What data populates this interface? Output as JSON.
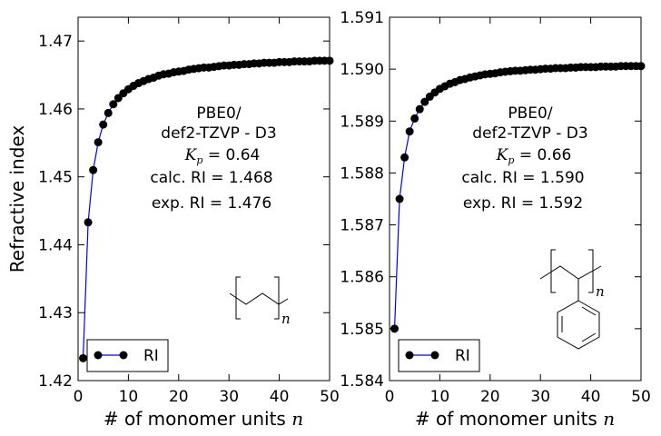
{
  "chart_data": [
    {
      "type": "line",
      "xlabel": "# of monomer units",
      "xlabel_var": "n",
      "ylabel": "Refractive index",
      "xlim": [
        0,
        50
      ],
      "ylim": [
        1.42,
        1.4735
      ],
      "xticks": [
        "0",
        "10",
        "20",
        "30",
        "40",
        "50"
      ],
      "yticks": [
        "1.42",
        "1.43",
        "1.44",
        "1.45",
        "1.46",
        "1.47"
      ],
      "legend": {
        "label": "RI",
        "placement": "lower-left"
      },
      "series": [
        {
          "name": "RI",
          "color": "#0000ff",
          "marker": "circle",
          "x": [
            1,
            2,
            3,
            4,
            5,
            6,
            7,
            8,
            9,
            10,
            11,
            12,
            13,
            14,
            15,
            16,
            17,
            18,
            19,
            20,
            21,
            22,
            23,
            24,
            25,
            26,
            27,
            28,
            29,
            30,
            31,
            32,
            33,
            34,
            35,
            36,
            37,
            38,
            39,
            40,
            41,
            42,
            43,
            44,
            45,
            46,
            47,
            48,
            49,
            50
          ],
          "y": [
            1.4233,
            1.4433,
            1.451,
            1.4551,
            1.4577,
            1.4594,
            1.4607,
            1.4616,
            1.4623,
            1.4629,
            1.4634,
            1.4638,
            1.4641,
            1.4644,
            1.4646,
            1.4649,
            1.4651,
            1.4652,
            1.4654,
            1.4655,
            1.4656,
            1.4658,
            1.4659,
            1.466,
            1.4661,
            1.4661,
            1.4662,
            1.4663,
            1.4664,
            1.4664,
            1.4665,
            1.4665,
            1.4666,
            1.4666,
            1.4667,
            1.4667,
            1.4668,
            1.4668,
            1.4668,
            1.4669,
            1.4669,
            1.4669,
            1.467,
            1.467,
            1.467,
            1.467,
            1.4671,
            1.4671,
            1.4671,
            1.4671
          ]
        }
      ],
      "annotations": {
        "method_line1": "PBE0/",
        "method_line2": "def2-TZVP - D3",
        "kp_symbol": "K",
        "kp_sub": "p",
        "kp_value": " = 0.64",
        "calc": "calc. RI = 1.468",
        "exp": "exp. RI = 1.476"
      },
      "structure": {
        "icon": "polyethylene-repeat-unit-icon",
        "subscript": "n"
      }
    },
    {
      "type": "line",
      "xlabel": "# of monomer units",
      "xlabel_var": "n",
      "ylabel": "",
      "xlim": [
        0,
        50
      ],
      "ylim": [
        1.584,
        1.591
      ],
      "xticks": [
        "0",
        "10",
        "20",
        "30",
        "40",
        "50"
      ],
      "yticks": [
        "1.584",
        "1.585",
        "1.586",
        "1.587",
        "1.588",
        "1.589",
        "1.590",
        "1.591"
      ],
      "legend": {
        "label": "RI",
        "placement": "lower-left"
      },
      "series": [
        {
          "name": "RI",
          "color": "#0000ff",
          "marker": "circle",
          "x": [
            1,
            2,
            3,
            4,
            5,
            6,
            7,
            8,
            9,
            10,
            11,
            12,
            13,
            14,
            15,
            16,
            17,
            18,
            19,
            20,
            21,
            22,
            23,
            24,
            25,
            26,
            27,
            28,
            29,
            30,
            31,
            32,
            33,
            34,
            35,
            36,
            37,
            38,
            39,
            40,
            41,
            42,
            43,
            44,
            45,
            46,
            47,
            48,
            49,
            50
          ],
          "y": [
            1.585,
            1.5875,
            1.5883,
            1.5888,
            1.58905,
            1.58923,
            1.58937,
            1.58947,
            1.58955,
            1.58962,
            1.58967,
            1.58972,
            1.58975,
            1.58979,
            1.58981,
            1.58984,
            1.58986,
            1.58988,
            1.5899,
            1.58991,
            1.58992,
            1.58994,
            1.58995,
            1.58996,
            1.58997,
            1.58997,
            1.58998,
            1.58999,
            1.58999,
            1.59,
            1.59001,
            1.59001,
            1.59002,
            1.59002,
            1.59002,
            1.59003,
            1.59003,
            1.59004,
            1.59004,
            1.59004,
            1.59004,
            1.59005,
            1.59005,
            1.59005,
            1.59005,
            1.59006,
            1.59006,
            1.59006,
            1.59006,
            1.59006
          ]
        }
      ],
      "annotations": {
        "method_line1": "PBE0/",
        "method_line2": "def2-TZVP - D3",
        "kp_symbol": "K",
        "kp_sub": "p",
        "kp_value": " = 0.66",
        "calc": "calc. RI = 1.590",
        "exp": "exp. RI = 1.592"
      },
      "structure": {
        "icon": "polystyrene-repeat-unit-icon",
        "subscript": "n"
      }
    }
  ]
}
